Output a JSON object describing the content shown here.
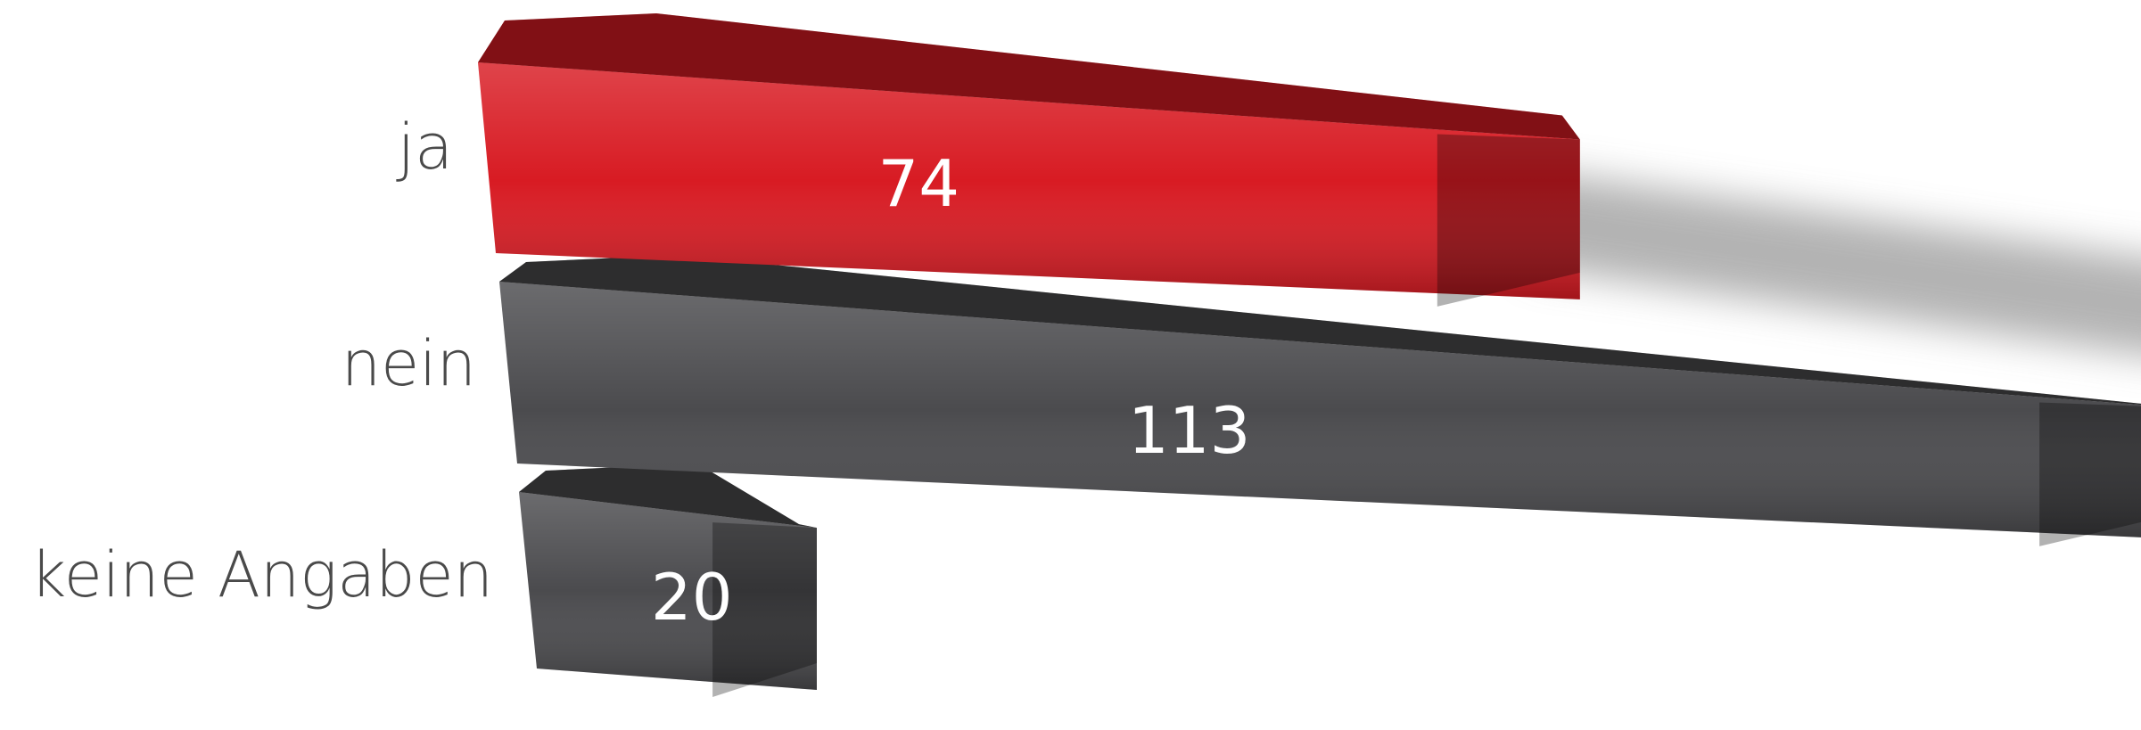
{
  "chart_data": {
    "type": "bar",
    "orientation": "horizontal",
    "categories": [
      "ja",
      "nein",
      "keine Angaben"
    ],
    "values": [
      74,
      113,
      20
    ],
    "colors": [
      "#d81b23",
      "#4b4b4e",
      "#4b4b4e"
    ]
  }
}
